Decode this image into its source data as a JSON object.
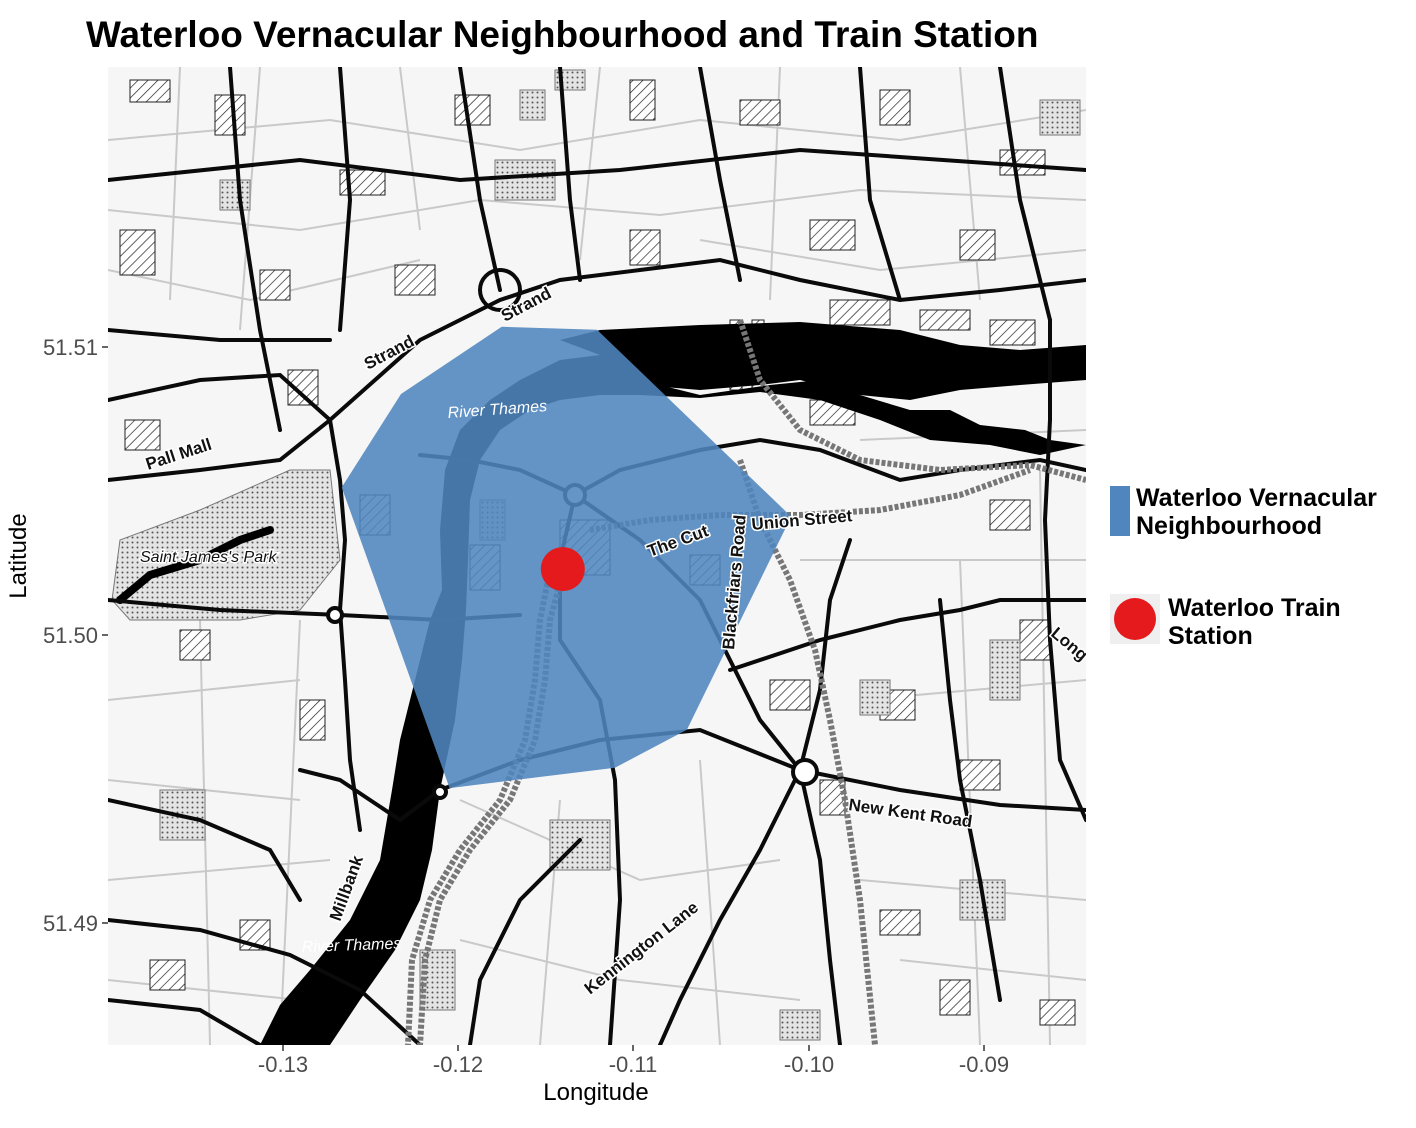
{
  "title": "Waterloo Vernacular Neighbourhood and Train Station",
  "axes": {
    "xlabel": "Longitude",
    "ylabel": "Latitude",
    "x_ticks": [
      "-0.13",
      "-0.12",
      "-0.11",
      "-0.10",
      "-0.09"
    ],
    "y_ticks": [
      "51.51",
      "51.50",
      "51.49"
    ]
  },
  "map_labels": {
    "strand_1": "Strand",
    "strand_2": "Strand",
    "pall_mall": "Pall Mall",
    "river_thames_1": "River Thames",
    "river_thames_2": "River Thames",
    "saint_james_park": "Saint James's Park",
    "the_cut": "The Cut",
    "union_street": "Union Street",
    "blackfriars_road": "Blackfriars Road",
    "new_kent_road": "New Kent Road",
    "millbank": "Millbank",
    "kennington_lane": "Kennington Lane",
    "long": "Long"
  },
  "legend": {
    "neighbourhood": {
      "line1": "Waterloo Vernacular",
      "line2": "Neighbourhood",
      "color": "#4f86be"
    },
    "station": {
      "line1": "Waterloo Train",
      "line2": "Station",
      "color": "#e41a1c"
    }
  },
  "chart_data": {
    "type": "map",
    "xlim": [
      -0.1399,
      -0.0855
    ],
    "ylim": [
      51.4862,
      51.5197
    ],
    "neighbourhood_polygon": {
      "name": "Waterloo Vernacular Neighbourhood",
      "fill": "#4f86be",
      "points": [
        [
          -0.1127,
          51.5107
        ],
        [
          -0.1019,
          51.5043
        ],
        [
          -0.1077,
          51.497
        ],
        [
          -0.1117,
          51.4957
        ],
        [
          -0.1209,
          51.495
        ],
        [
          -0.1269,
          51.5053
        ],
        [
          -0.1236,
          51.5085
        ],
        [
          -0.118,
          51.5108
        ]
      ]
    },
    "station": {
      "name": "Waterloo Train Station",
      "lon": -0.1146,
      "lat": 51.5025,
      "color": "#e41a1c"
    }
  }
}
